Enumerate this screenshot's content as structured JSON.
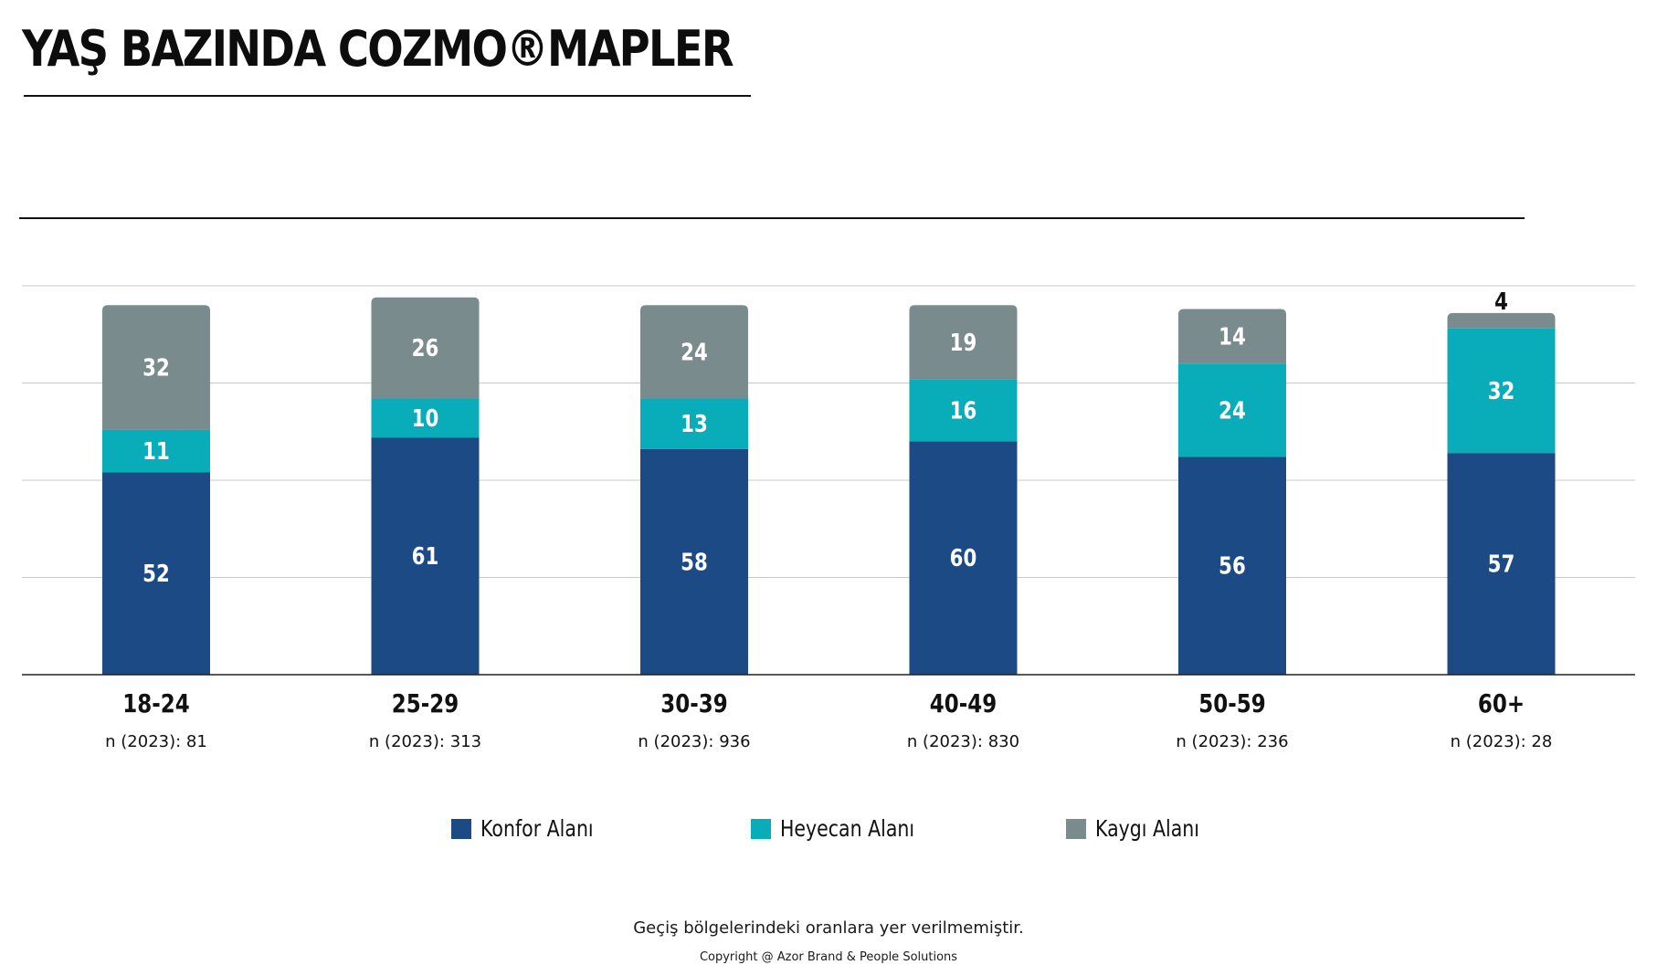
{
  "title": "YAŞ BAZINDA COZMO®MAPLER",
  "chart_data": {
    "type": "bar",
    "stacked": true,
    "categories": [
      "18-24",
      "25-29",
      "30-39",
      "40-49",
      "50-59",
      "60+"
    ],
    "sample_sizes": [
      "n (2023): 81",
      "n (2023): 313",
      "n (2023): 936",
      "n (2023): 830",
      "n (2023): 236",
      "n (2023): 28"
    ],
    "series": [
      {
        "name": "Konfor Alanı",
        "color": "#1c4a85",
        "values": [
          52,
          61,
          58,
          60,
          56,
          57
        ]
      },
      {
        "name": "Heyecan Alanı",
        "color": "#08adb9",
        "values": [
          11,
          10,
          13,
          16,
          24,
          32
        ]
      },
      {
        "name": "Kaygı Alanı",
        "color": "#7a8b8d",
        "values": [
          32,
          26,
          24,
          19,
          14,
          4
        ]
      }
    ],
    "ylim": [
      0,
      100
    ],
    "grid": true,
    "legend": "bottom"
  },
  "footnote": "Geçiş bölgelerindeki oranlara yer verilmemiştir.",
  "copyright": "Copyright @ Azor Brand & People Solutions"
}
